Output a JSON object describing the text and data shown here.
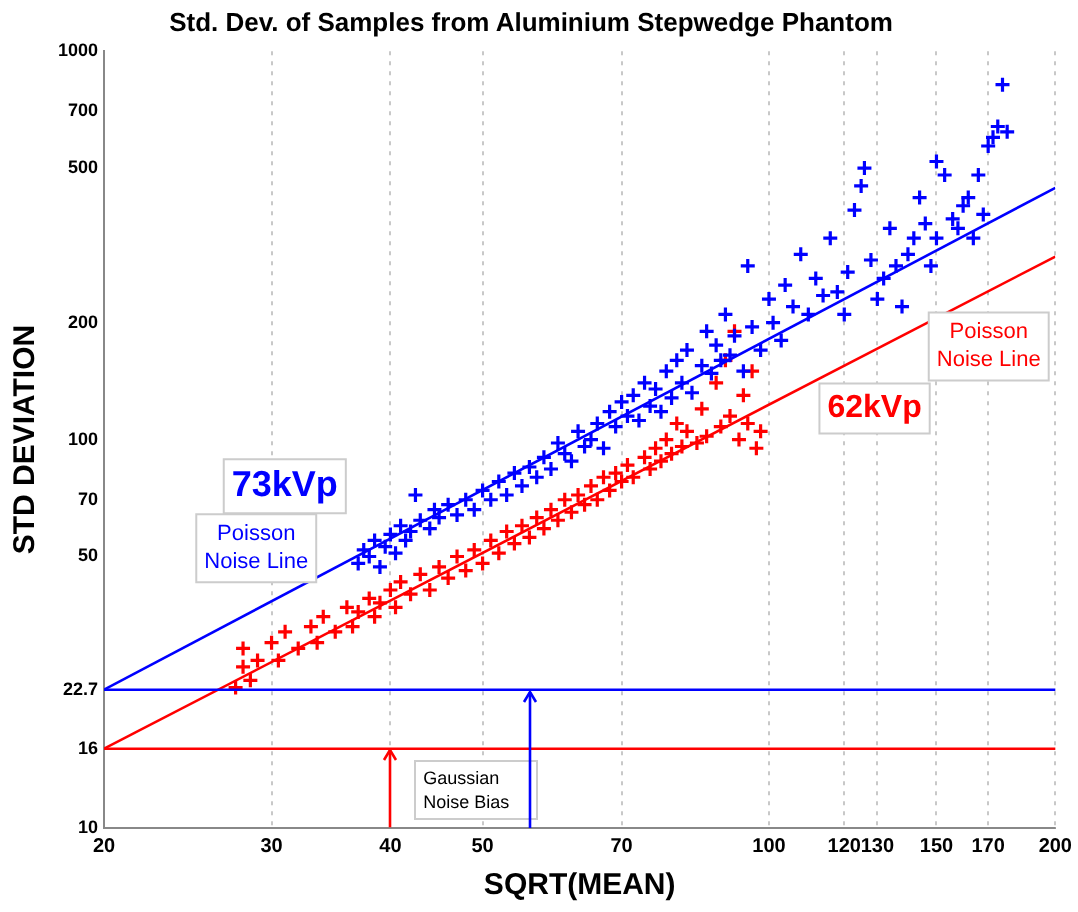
{
  "chart_data": {
    "type": "scatter",
    "title": "Std. Dev. of Samples from Aluminium Stepwedge Phantom",
    "xlabel": "SQRT(MEAN)",
    "ylabel": "STD DEVIATION",
    "log": "xy",
    "grid": "x",
    "legend": false,
    "marker": "cross",
    "xlim": [
      20,
      200
    ],
    "xticks": [
      20,
      30,
      40,
      50,
      70,
      100,
      120,
      130,
      150,
      170,
      200
    ],
    "ylim": [
      10,
      1000
    ],
    "yticks": [
      10,
      16,
      22.7,
      50,
      70,
      100,
      200,
      500,
      700,
      1000
    ],
    "ref_lines": [
      {
        "axis": "y",
        "value": 22.7,
        "color": "#0000ff"
      },
      {
        "axis": "y",
        "value": 16,
        "color": "#ff0000"
      }
    ],
    "annotations": [
      "Gaussian Noise Bias"
    ],
    "series": [
      {
        "name": "73kVp",
        "color": "#0000ff",
        "x": [
          37,
          37.5,
          38,
          38.5,
          39,
          39.5,
          40,
          40.5,
          41,
          41.5,
          42,
          42.5,
          43,
          44,
          44.5,
          45,
          46,
          47,
          48,
          49,
          50,
          51,
          52,
          53,
          54,
          55,
          56,
          57,
          58,
          59,
          60,
          61,
          62,
          63,
          64,
          65,
          66,
          67,
          68,
          69,
          70,
          71,
          72,
          73,
          74,
          75,
          76,
          77,
          78,
          79,
          80,
          81,
          82,
          83,
          85,
          86,
          87,
          88,
          89,
          90,
          91,
          92,
          94,
          95,
          96,
          98,
          100,
          101,
          103,
          104,
          106,
          108,
          110,
          112,
          114,
          116,
          118,
          120,
          121,
          123,
          125,
          126,
          128,
          130,
          132,
          134,
          136,
          138,
          140,
          142,
          144,
          146,
          148,
          150,
          150,
          153,
          156,
          158,
          160,
          162,
          164,
          166,
          168,
          170,
          172,
          174,
          176,
          178
        ],
        "values": [
          48,
          52,
          50,
          55,
          47,
          53,
          57,
          51,
          60,
          55,
          58,
          72,
          62,
          59,
          66,
          63,
          68,
          64,
          70,
          66,
          74,
          70,
          78,
          72,
          82,
          76,
          85,
          80,
          90,
          84,
          98,
          92,
          88,
          105,
          96,
          100,
          110,
          95,
          118,
          108,
          125,
          115,
          130,
          112,
          140,
          122,
          135,
          118,
          150,
          128,
          160,
          140,
          170,
          132,
          155,
          190,
          148,
          175,
          160,
          210,
          165,
          185,
          150,
          280,
          195,
          170,
          230,
          200,
          180,
          250,
          220,
          300,
          210,
          260,
          235,
          330,
          240,
          210,
          270,
          390,
          450,
          500,
          290,
          230,
          260,
          350,
          280,
          220,
          300,
          330,
          420,
          360,
          280,
          330,
          520,
          480,
          370,
          350,
          400,
          420,
          330,
          480,
          380,
          570,
          600,
          640,
          820,
          620
        ]
      },
      {
        "name": "62kVp",
        "color": "#ff0000",
        "x": [
          27.5,
          28,
          28,
          28.5,
          29,
          30,
          30.5,
          31,
          32,
          33,
          33.5,
          34,
          35,
          36,
          36.5,
          37,
          38,
          38.5,
          39,
          40,
          40.5,
          41,
          42,
          43,
          44,
          45,
          46,
          47,
          48,
          49,
          50,
          51,
          52,
          53,
          54,
          55,
          56,
          57,
          58,
          59,
          60,
          61,
          62,
          63,
          64,
          65,
          66,
          67,
          68,
          69,
          70,
          71,
          72,
          74,
          75,
          76,
          77,
          78,
          79,
          80,
          81,
          82,
          84,
          85,
          86,
          88,
          89,
          90,
          91,
          92,
          93,
          94,
          95,
          96,
          97,
          98
        ],
        "values": [
          23,
          26,
          29,
          24,
          27,
          30,
          27,
          32,
          29,
          33,
          30,
          35,
          32,
          37,
          33,
          36,
          39,
          35,
          38,
          41,
          37,
          43,
          40,
          45,
          41,
          47,
          44,
          50,
          46,
          52,
          48,
          55,
          51,
          58,
          54,
          60,
          56,
          63,
          59,
          66,
          62,
          70,
          65,
          72,
          68,
          76,
          70,
          80,
          74,
          82,
          78,
          86,
          80,
          90,
          84,
          95,
          88,
          100,
          92,
          110,
          96,
          105,
          98,
          120,
          102,
          140,
          108,
          160,
          115,
          190,
          100,
          130,
          110,
          150,
          95,
          105
        ]
      },
      {
        "name": "Poisson Noise Line",
        "type": "line",
        "marker": "none",
        "color": "#0000ff",
        "x": [
          20,
          200
        ],
        "values": [
          22.7,
          445
        ]
      },
      {
        "name": "Poisson Noise Line",
        "type": "line",
        "marker": "none",
        "color": "#ff0000",
        "x": [
          20,
          200
        ],
        "values": [
          16,
          296
        ]
      }
    ]
  }
}
